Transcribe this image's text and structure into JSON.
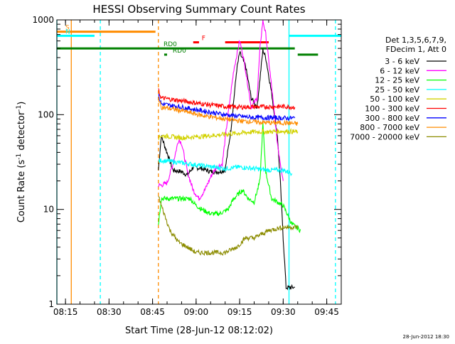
{
  "chart_data": {
    "type": "line",
    "title": "HESSI Observing Summary Count Rates",
    "xlabel": "Start Time (28-Jun-12 08:12:02)",
    "ylabel": "Count Rate (s⁻¹ detector⁻¹)",
    "ylabel_parts": [
      "Count Rate (s",
      "-1",
      " detector",
      "-1",
      ")"
    ],
    "y_scale": "log",
    "ylim": [
      1,
      1000
    ],
    "xlim": [
      "08:12:02",
      "09:50:00"
    ],
    "x_ticks": [
      "08:15",
      "08:30",
      "08:45",
      "09:00",
      "09:15",
      "09:30",
      "09:45"
    ],
    "y_ticks": [
      "1",
      "10",
      "100",
      "1000"
    ],
    "grid": false,
    "legend_position": "right",
    "legend_header": [
      "Det 1,3,5,6,7,9,",
      "FDecim 1, Att 0"
    ],
    "timestamp": "28-Jun-2012 18:30",
    "series": [
      {
        "name": "3 - 6 keV",
        "color": "#000000",
        "x": [
          "08:47",
          "08:48",
          "08:52",
          "08:55",
          "08:57",
          "08:59",
          "09:02",
          "09:05",
          "09:08",
          "09:10",
          "09:12",
          "09:14",
          "09:15",
          "09:17",
          "09:19",
          "09:21",
          "09:23",
          "09:24",
          "09:26",
          "09:28",
          "09:29",
          "09:30",
          "09:31",
          "09:33",
          "09:34"
        ],
        "values": [
          26,
          60,
          26,
          25,
          23,
          28,
          27,
          25,
          25,
          26,
          70,
          300,
          450,
          330,
          150,
          120,
          480,
          400,
          170,
          60,
          20,
          5,
          1.5,
          1.5,
          1.5
        ]
      },
      {
        "name": "6 - 12 keV",
        "color": "#ff00ff",
        "x": [
          "08:47",
          "08:48",
          "08:50",
          "08:52",
          "08:54",
          "08:55",
          "08:57",
          "08:59",
          "09:01",
          "09:03",
          "09:05",
          "09:07",
          "09:09",
          "09:11",
          "09:13",
          "09:15",
          "09:16",
          "09:17",
          "09:19",
          "09:21",
          "09:22",
          "09:23",
          "09:24",
          "09:26",
          "09:28",
          "09:30"
        ],
        "values": [
          18,
          18,
          19,
          30,
          55,
          50,
          25,
          16,
          13,
          16,
          22,
          28,
          30,
          100,
          300,
          600,
          450,
          300,
          120,
          150,
          500,
          1000,
          700,
          200,
          50,
          20
        ]
      },
      {
        "name": "12 - 25 keV",
        "color": "#00ff00",
        "x": [
          "08:47",
          "08:48",
          "08:52",
          "08:55",
          "08:58",
          "09:00",
          "09:02",
          "09:05",
          "09:08",
          "09:11",
          "09:13",
          "09:15",
          "09:16",
          "09:18",
          "09:20",
          "09:22",
          "09:23",
          "09:24",
          "09:26",
          "09:28",
          "09:30",
          "09:33",
          "09:36"
        ],
        "values": [
          7,
          13,
          13,
          13,
          13,
          11,
          10,
          9,
          9,
          10,
          13,
          15,
          16,
          13,
          12,
          20,
          80,
          25,
          13,
          12,
          11,
          7,
          6
        ]
      },
      {
        "name": "25 - 50 keV",
        "color": "#00ffff",
        "x": [
          "08:47",
          "08:48",
          "08:55",
          "09:02",
          "09:10",
          "09:15",
          "09:20",
          "09:25",
          "09:30",
          "09:33"
        ],
        "values": [
          32,
          33,
          31,
          29,
          27,
          28,
          27,
          26,
          26,
          24
        ]
      },
      {
        "name": "50 - 100 keV",
        "color": "#d2d200",
        "x": [
          "08:47",
          "08:48",
          "08:55",
          "09:02",
          "09:10",
          "09:15",
          "09:20",
          "09:25",
          "09:30",
          "09:35"
        ],
        "values": [
          57,
          60,
          57,
          59,
          62,
          64,
          66,
          66,
          67,
          66
        ]
      },
      {
        "name": "100 - 300 keV",
        "color": "#ff0000",
        "x": [
          "08:47",
          "08:48",
          "08:55",
          "09:02",
          "09:10",
          "09:15",
          "09:20",
          "09:25",
          "09:30",
          "09:34"
        ],
        "values": [
          180,
          150,
          140,
          130,
          122,
          120,
          121,
          121,
          122,
          120
        ]
      },
      {
        "name": "300 - 800 keV",
        "color": "#0000ff",
        "x": [
          "08:47",
          "08:48",
          "08:55",
          "09:02",
          "09:10",
          "09:15",
          "09:20",
          "09:25",
          "09:30",
          "09:34"
        ],
        "values": [
          160,
          130,
          120,
          110,
          100,
          96,
          93,
          93,
          92,
          92
        ]
      },
      {
        "name": "800 - 7000 keV",
        "color": "#ff8c00",
        "x": [
          "08:47",
          "08:48",
          "08:55",
          "09:02",
          "09:10",
          "09:15",
          "09:20",
          "09:25",
          "09:30",
          "09:35"
        ],
        "values": [
          150,
          120,
          110,
          98,
          90,
          86,
          84,
          82,
          82,
          80
        ]
      },
      {
        "name": "7000 - 20000 keV",
        "color": "#8c8c00",
        "x": [
          "08:47",
          "08:48",
          "08:51",
          "08:54",
          "08:57",
          "09:00",
          "09:05",
          "09:10",
          "09:14",
          "09:17",
          "09:20",
          "09:25",
          "09:30",
          "09:35"
        ],
        "values": [
          14,
          11,
          6,
          4.5,
          4.0,
          3.5,
          3.5,
          3.5,
          4.0,
          5.0,
          5.0,
          6.0,
          6.5,
          6.5
        ]
      }
    ],
    "flags": [
      {
        "label": "S",
        "color": "#ff8c00",
        "y": 750,
        "x_start": "08:12:02",
        "x_end": "08:46"
      },
      {
        "label": "N",
        "color": "#00ffff",
        "y": 680,
        "x_start": "08:12:02",
        "x_end": "08:25",
        "x2_start": "09:32",
        "x2_end": "09:50"
      },
      {
        "label": "F",
        "color": "#ff0000",
        "y": 580,
        "x_start": "08:59",
        "x_end": "09:01",
        "x2_start": "09:10",
        "x2_end": "09:25"
      },
      {
        "label": "RD0",
        "color": "#008000",
        "y": 500,
        "x_start": "08:12:02",
        "x_end": "09:34"
      },
      {
        "label": "RD0",
        "color": "#008000",
        "y": 430,
        "x_start": "08:49",
        "x_end": "08:50",
        "x2_start": "09:35",
        "x2_end": "09:42"
      }
    ],
    "v_lines": [
      {
        "x": "08:17",
        "color": "#ff8c00",
        "style": "solid"
      },
      {
        "x": "08:27",
        "color": "#00ffff",
        "style": "dashed"
      },
      {
        "x": "08:47",
        "color": "#ff8c00",
        "style": "dashed"
      },
      {
        "x": "09:32",
        "color": "#00ffff",
        "style": "solid"
      },
      {
        "x": "09:48",
        "color": "#00ffff",
        "style": "dashed"
      },
      {
        "x": "08:12:02",
        "color": "#00ffff",
        "style": "solid"
      }
    ]
  }
}
